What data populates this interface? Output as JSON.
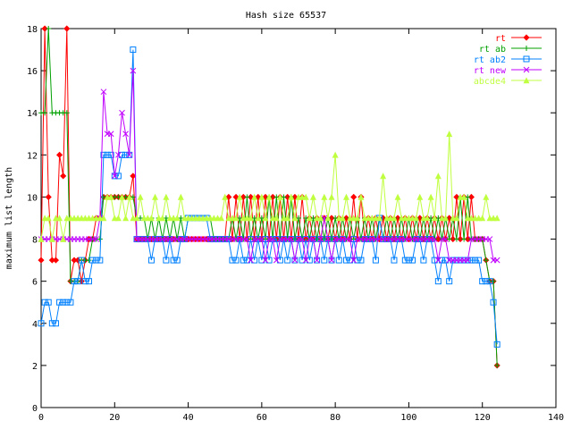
{
  "chart_data": {
    "type": "line",
    "title": "Hash size 65537",
    "xlabel": "",
    "ylabel": "maximum list length",
    "xlim": [
      0,
      140
    ],
    "ylim": [
      0,
      18
    ],
    "xticks": [
      0,
      20,
      40,
      60,
      80,
      100,
      120,
      140
    ],
    "yticks": [
      0,
      2,
      4,
      6,
      8,
      10,
      12,
      14,
      16,
      18
    ],
    "grid": false,
    "legend_position": "top-right",
    "series": [
      {
        "name": "rt",
        "color": "#ff0000",
        "marker": "diamond",
        "x": [
          0,
          1,
          2,
          3,
          4,
          5,
          6,
          7,
          8,
          9,
          10,
          11,
          12,
          13,
          14,
          15,
          16,
          17,
          18,
          19,
          20,
          21,
          22,
          23,
          24,
          25,
          26,
          27,
          28,
          29,
          30,
          31,
          32,
          33,
          34,
          35,
          36,
          37,
          38,
          39,
          40,
          41,
          42,
          43,
          44,
          45,
          46,
          47,
          48,
          49,
          50,
          51,
          52,
          53,
          54,
          55,
          56,
          57,
          58,
          59,
          60,
          61,
          62,
          63,
          64,
          65,
          66,
          67,
          68,
          69,
          70,
          71,
          72,
          73,
          74,
          75,
          76,
          77,
          78,
          79,
          80,
          81,
          82,
          83,
          84,
          85,
          86,
          87,
          88,
          89,
          90,
          91,
          92,
          93,
          94,
          95,
          96,
          97,
          98,
          99,
          100,
          101,
          102,
          103,
          104,
          105,
          106,
          107,
          108,
          109,
          110,
          111,
          112,
          113,
          114,
          115,
          116,
          117,
          118,
          119,
          120,
          121,
          122,
          123,
          124
        ],
        "y": [
          7,
          18,
          10,
          7,
          7,
          12,
          11,
          18,
          6,
          7,
          7,
          6,
          7,
          8,
          8,
          9,
          9,
          10,
          10,
          10,
          10,
          10,
          10,
          10,
          10,
          11,
          8,
          8,
          8,
          8,
          8,
          8,
          8,
          8,
          8,
          8,
          8,
          8,
          8,
          8,
          8,
          8,
          8,
          8,
          8,
          8,
          8,
          8,
          8,
          8,
          8,
          10,
          8,
          10,
          8,
          10,
          8,
          10,
          8,
          10,
          8,
          10,
          8,
          10,
          8,
          10,
          8,
          10,
          8,
          10,
          8,
          10,
          8,
          9,
          8,
          9,
          8,
          9,
          8,
          9,
          8,
          9,
          8,
          9,
          8,
          10,
          8,
          10,
          8,
          9,
          8,
          9,
          8,
          9,
          8,
          9,
          8,
          9,
          8,
          9,
          8,
          9,
          8,
          9,
          8,
          9,
          8,
          9,
          8,
          9,
          8,
          9,
          8,
          10,
          8,
          10,
          8,
          10,
          8,
          8,
          8,
          7,
          6,
          6,
          2
        ]
      },
      {
        "name": "rt ab",
        "color": "#00a000",
        "marker": "plus",
        "x": [
          0,
          1,
          2,
          3,
          4,
          5,
          6,
          7,
          8,
          9,
          10,
          11,
          12,
          13,
          14,
          15,
          16,
          17,
          18,
          19,
          20,
          21,
          22,
          23,
          24,
          25,
          26,
          27,
          28,
          29,
          30,
          31,
          32,
          33,
          34,
          35,
          36,
          37,
          38,
          39,
          40,
          41,
          42,
          43,
          44,
          45,
          46,
          47,
          48,
          49,
          50,
          51,
          52,
          53,
          54,
          55,
          56,
          57,
          58,
          59,
          60,
          61,
          62,
          63,
          64,
          65,
          66,
          67,
          68,
          69,
          70,
          71,
          72,
          73,
          74,
          75,
          76,
          77,
          78,
          79,
          80,
          81,
          82,
          83,
          84,
          85,
          86,
          87,
          88,
          89,
          90,
          91,
          92,
          93,
          94,
          95,
          96,
          97,
          98,
          99,
          100,
          101,
          102,
          103,
          104,
          105,
          106,
          107,
          108,
          109,
          110,
          111,
          112,
          113,
          114,
          115,
          116,
          117,
          118,
          119,
          120,
          121,
          122,
          123,
          124
        ],
        "y": [
          14,
          14,
          18,
          14,
          14,
          14,
          14,
          14,
          6,
          6,
          6,
          7,
          7,
          7,
          8,
          8,
          8,
          10,
          10,
          10,
          10,
          10,
          10,
          10,
          10,
          10,
          9,
          9,
          9,
          8,
          9,
          8,
          9,
          8,
          9,
          8,
          9,
          8,
          9,
          8,
          9,
          9,
          9,
          9,
          9,
          9,
          9,
          8,
          8,
          8,
          8,
          8,
          9,
          8,
          9,
          8,
          10,
          8,
          9,
          8,
          9,
          8,
          10,
          8,
          10,
          8,
          10,
          8,
          10,
          8,
          9,
          8,
          9,
          8,
          9,
          8,
          9,
          8,
          9,
          8,
          9,
          8,
          9,
          8,
          9,
          8,
          9,
          8,
          9,
          8,
          9,
          8,
          9,
          8,
          9,
          8,
          9,
          8,
          9,
          8,
          9,
          8,
          9,
          8,
          9,
          8,
          9,
          8,
          9,
          8,
          9,
          8,
          9,
          8,
          10,
          8,
          10,
          8,
          8,
          8,
          8,
          7,
          6,
          6,
          2
        ]
      },
      {
        "name": "rt ab2",
        "color": "#0080ff",
        "marker": "square",
        "x": [
          0,
          1,
          2,
          3,
          4,
          5,
          6,
          7,
          8,
          9,
          10,
          11,
          12,
          13,
          14,
          15,
          16,
          17,
          18,
          19,
          20,
          21,
          22,
          23,
          24,
          25,
          26,
          27,
          28,
          29,
          30,
          31,
          32,
          33,
          34,
          35,
          36,
          37,
          38,
          39,
          40,
          41,
          42,
          43,
          44,
          45,
          46,
          47,
          48,
          49,
          50,
          51,
          52,
          53,
          54,
          55,
          56,
          57,
          58,
          59,
          60,
          61,
          62,
          63,
          64,
          65,
          66,
          67,
          68,
          69,
          70,
          71,
          72,
          73,
          74,
          75,
          76,
          77,
          78,
          79,
          80,
          81,
          82,
          83,
          84,
          85,
          86,
          87,
          88,
          89,
          90,
          91,
          92,
          93,
          94,
          95,
          96,
          97,
          98,
          99,
          100,
          101,
          102,
          103,
          104,
          105,
          106,
          107,
          108,
          109,
          110,
          111,
          112,
          113,
          114,
          115,
          116,
          117,
          118,
          119,
          120,
          121,
          122,
          123,
          124
        ],
        "y": [
          4,
          5,
          5,
          4,
          4,
          5,
          5,
          5,
          5,
          6,
          6,
          7,
          6,
          6,
          7,
          7,
          7,
          12,
          12,
          12,
          11,
          11,
          12,
          12,
          12,
          17,
          8,
          8,
          8,
          8,
          7,
          8,
          8,
          8,
          7,
          8,
          7,
          7,
          8,
          8,
          9,
          9,
          9,
          9,
          9,
          9,
          8,
          8,
          8,
          8,
          8,
          8,
          7,
          7,
          8,
          7,
          7,
          8,
          7,
          8,
          7,
          8,
          7,
          8,
          8,
          7,
          8,
          7,
          8,
          7,
          8,
          7,
          8,
          7,
          8,
          7,
          8,
          7,
          8,
          7,
          8,
          7,
          8,
          7,
          7,
          8,
          7,
          7,
          8,
          8,
          8,
          7,
          9,
          8,
          8,
          8,
          7,
          8,
          8,
          7,
          7,
          7,
          8,
          8,
          7,
          8,
          8,
          7,
          6,
          7,
          7,
          6,
          7,
          7,
          7,
          7,
          7,
          7,
          7,
          7,
          6,
          6,
          6,
          5,
          3
        ]
      },
      {
        "name": "rt new",
        "color": "#c000ff",
        "marker": "cross",
        "x": [
          0,
          1,
          2,
          3,
          4,
          5,
          6,
          7,
          8,
          9,
          10,
          11,
          12,
          13,
          14,
          15,
          16,
          17,
          18,
          19,
          20,
          21,
          22,
          23,
          24,
          25,
          26,
          27,
          28,
          29,
          30,
          31,
          32,
          33,
          34,
          35,
          36,
          37,
          38,
          39,
          40,
          41,
          42,
          43,
          44,
          45,
          46,
          47,
          48,
          49,
          50,
          51,
          52,
          53,
          54,
          55,
          56,
          57,
          58,
          59,
          60,
          61,
          62,
          63,
          64,
          65,
          66,
          67,
          68,
          69,
          70,
          71,
          72,
          73,
          74,
          75,
          76,
          77,
          78,
          79,
          80,
          81,
          82,
          83,
          84,
          85,
          86,
          87,
          88,
          89,
          90,
          91,
          92,
          93,
          94,
          95,
          96,
          97,
          98,
          99,
          100,
          101,
          102,
          103,
          104,
          105,
          106,
          107,
          108,
          109,
          110,
          111,
          112,
          113,
          114,
          115,
          116,
          117,
          118,
          119,
          120,
          121,
          122,
          123,
          124
        ],
        "y": [
          8,
          8,
          8,
          8,
          8,
          8,
          8,
          8,
          8,
          8,
          8,
          8,
          8,
          8,
          8,
          8,
          9,
          15,
          13,
          13,
          11,
          12,
          14,
          13,
          12,
          16,
          8,
          8,
          8,
          8,
          8,
          8,
          8,
          8,
          8,
          8,
          8,
          8,
          8,
          8,
          8,
          8,
          8,
          8,
          8,
          8,
          8,
          8,
          8,
          8,
          8,
          8,
          8,
          8,
          8,
          8,
          8,
          7,
          8,
          8,
          8,
          7,
          8,
          8,
          7,
          8,
          8,
          8,
          8,
          7,
          8,
          8,
          7,
          8,
          8,
          7,
          8,
          9,
          8,
          7,
          8,
          8,
          8,
          8,
          8,
          7,
          8,
          8,
          8,
          8,
          8,
          8,
          8,
          8,
          8,
          8,
          8,
          8,
          8,
          8,
          8,
          8,
          8,
          8,
          8,
          8,
          8,
          8,
          7,
          8,
          8,
          7,
          7,
          7,
          7,
          7,
          7,
          8,
          8,
          8,
          8,
          8,
          8,
          7,
          7
        ]
      },
      {
        "name": "abcde4",
        "color": "#c0ff40",
        "marker": "triangle",
        "x": [
          0,
          1,
          2,
          3,
          4,
          5,
          6,
          7,
          8,
          9,
          10,
          11,
          12,
          13,
          14,
          15,
          16,
          17,
          18,
          19,
          20,
          21,
          22,
          23,
          24,
          25,
          26,
          27,
          28,
          29,
          30,
          31,
          32,
          33,
          34,
          35,
          36,
          37,
          38,
          39,
          40,
          41,
          42,
          43,
          44,
          45,
          46,
          47,
          48,
          49,
          50,
          51,
          52,
          53,
          54,
          55,
          56,
          57,
          58,
          59,
          60,
          61,
          62,
          63,
          64,
          65,
          66,
          67,
          68,
          69,
          70,
          71,
          72,
          73,
          74,
          75,
          76,
          77,
          78,
          79,
          80,
          81,
          82,
          83,
          84,
          85,
          86,
          87,
          88,
          89,
          90,
          91,
          92,
          93,
          94,
          95,
          96,
          97,
          98,
          99,
          100,
          101,
          102,
          103,
          104,
          105,
          106,
          107,
          108,
          109,
          110,
          111,
          112,
          113,
          114,
          115,
          116,
          117,
          118,
          119,
          120,
          121,
          122,
          123,
          124
        ],
        "y": [
          8,
          9,
          9,
          8,
          9,
          9,
          8,
          9,
          9,
          9,
          9,
          9,
          9,
          9,
          9,
          9,
          9,
          9,
          10,
          10,
          9,
          9,
          10,
          9,
          10,
          9,
          9,
          10,
          9,
          9,
          9,
          10,
          9,
          9,
          10,
          9,
          9,
          9,
          10,
          9,
          9,
          9,
          9,
          9,
          9,
          9,
          9,
          9,
          9,
          9,
          10,
          9,
          9,
          9,
          10,
          9,
          9,
          9,
          10,
          9,
          10,
          9,
          10,
          9,
          9,
          10,
          9,
          9,
          10,
          9,
          10,
          10,
          10,
          9,
          10,
          9,
          9,
          10,
          9,
          10,
          12,
          9,
          9,
          10,
          9,
          9,
          9,
          10,
          9,
          9,
          9,
          9,
          9,
          11,
          9,
          9,
          9,
          10,
          9,
          9,
          9,
          9,
          9,
          10,
          9,
          9,
          10,
          9,
          11,
          9,
          9,
          13,
          9,
          9,
          10,
          10,
          9,
          9,
          9,
          9,
          9,
          10,
          9,
          9,
          9
        ]
      }
    ]
  }
}
